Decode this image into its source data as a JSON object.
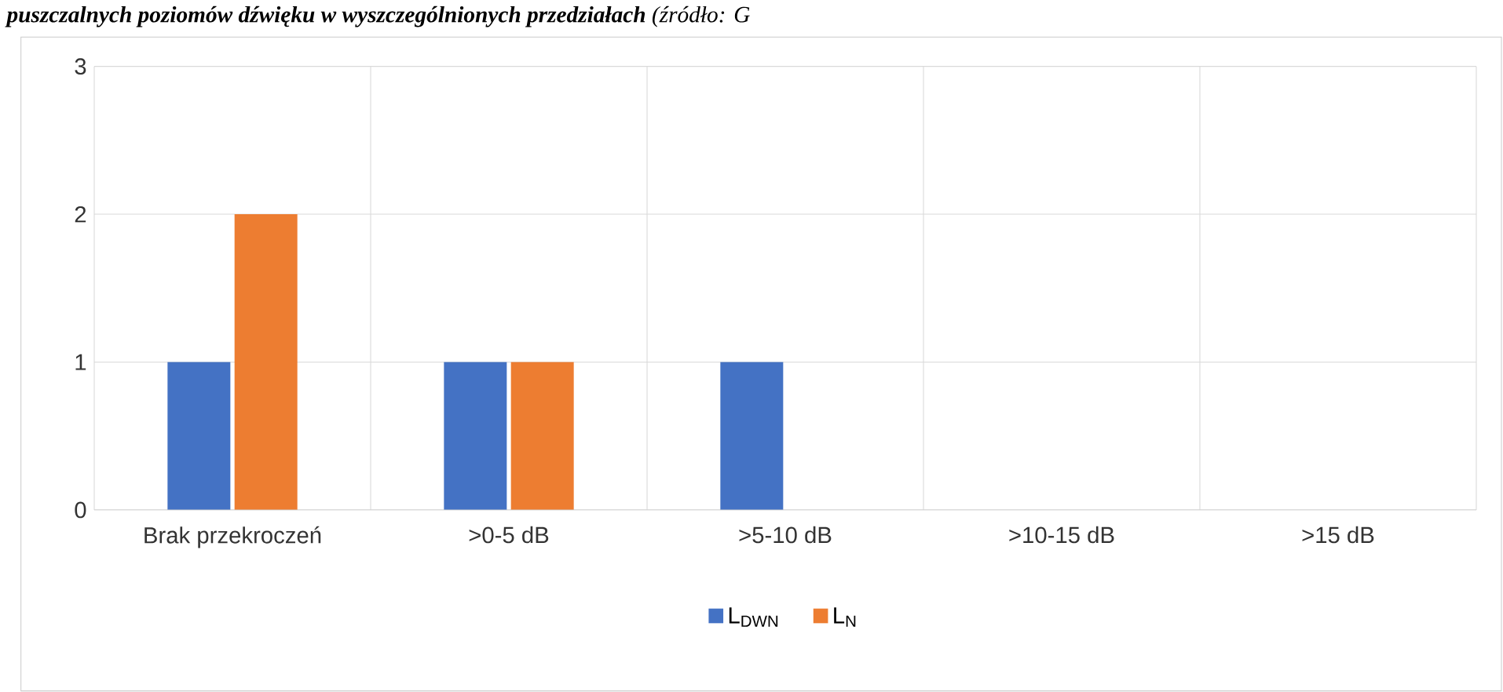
{
  "chart_data": {
    "type": "bar",
    "title": "**puszczalnych poziomów dźwięku w wyszczególnionych przedziałach** (źródło: G",
    "categories": [
      "Brak przekroczeń",
      ">0-5 dB",
      ">5-10 dB",
      ">10-15 dB",
      ">15 dB"
    ],
    "series": [
      {
        "name": "L$_{DWN}$",
        "color": "#4472c4",
        "values": [
          1,
          1,
          1,
          0,
          0
        ]
      },
      {
        "name": "L$_{N}$",
        "color": "#ed7d31",
        "values": [
          2,
          1,
          0,
          0,
          0
        ]
      }
    ],
    "ylim": [
      0,
      3
    ],
    "yticks": [
      0,
      1,
      2,
      3
    ],
    "grid": true,
    "legend": "bottom"
  }
}
